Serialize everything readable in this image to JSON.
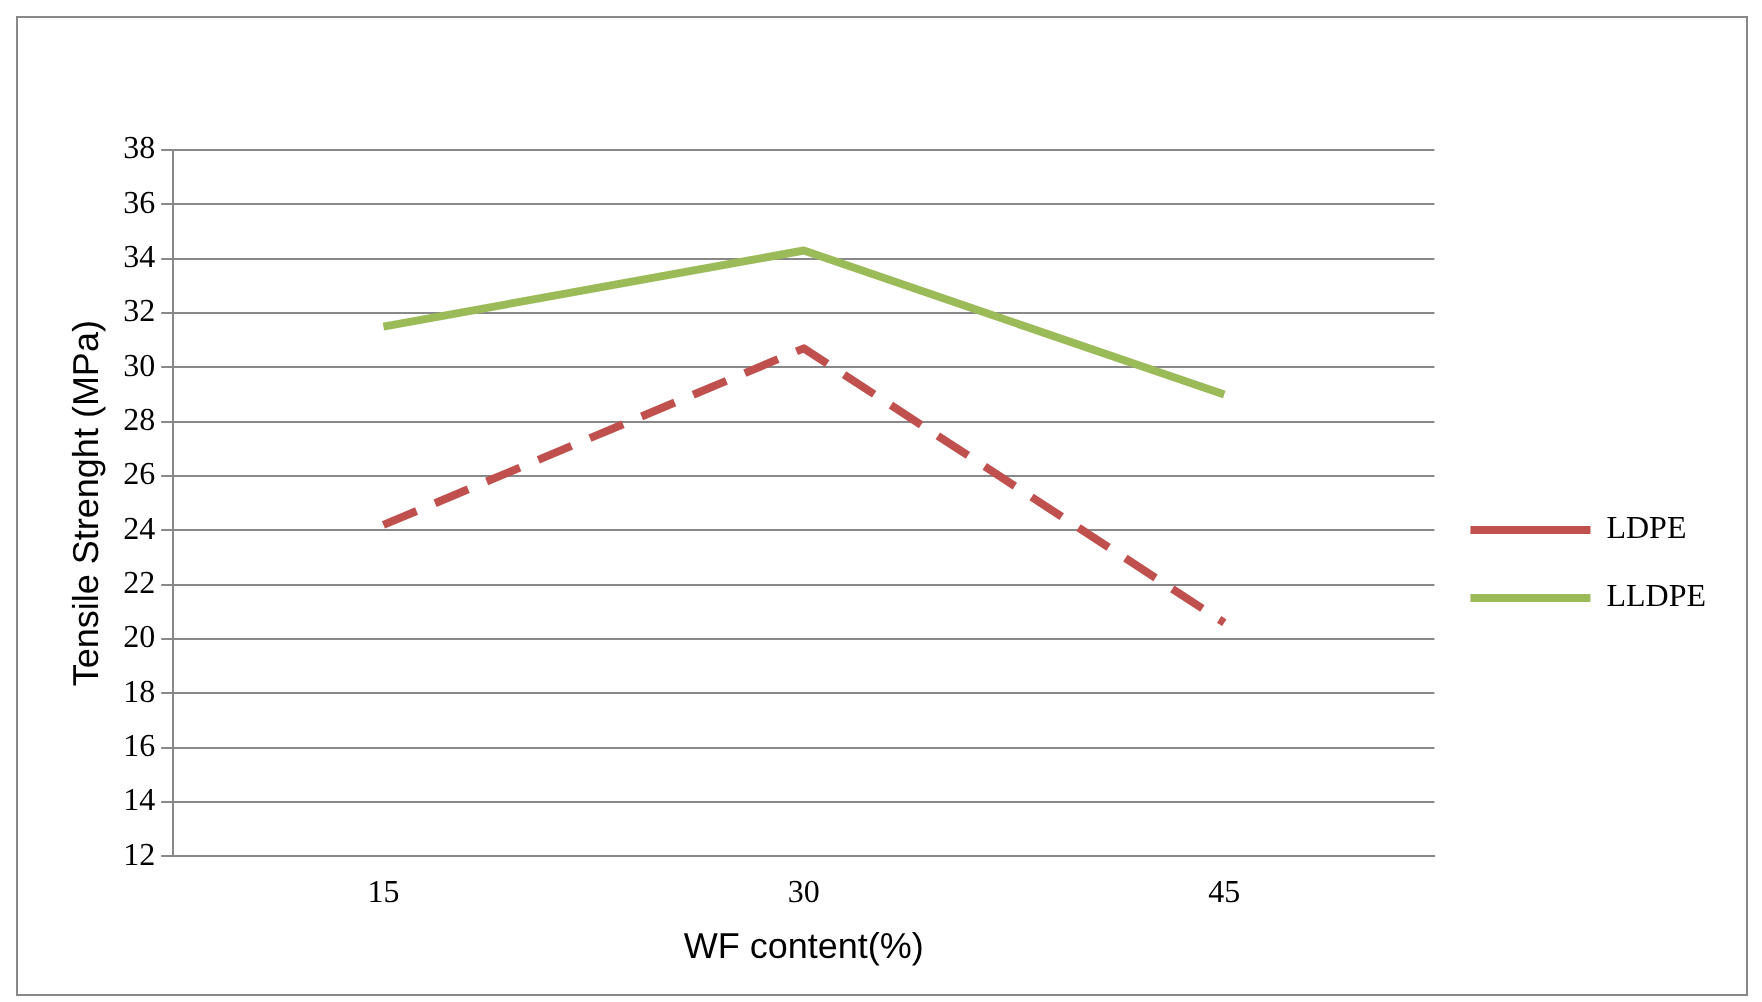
{
  "chart_data": {
    "type": "line",
    "xlabel": "WF content(%)",
    "ylabel": "Tensile Strenght (MPa)",
    "categories": [
      "15",
      "30",
      "45"
    ],
    "series": [
      {
        "name": "LDPE",
        "color": "#c0504d",
        "values": [
          24.2,
          30.7,
          20.6
        ],
        "line_style": "dashed"
      },
      {
        "name": "LLDPE",
        "color": "#9bbb59",
        "values": [
          31.5,
          34.3,
          29.0
        ],
        "line_style": "solid"
      }
    ],
    "ylim": [
      12,
      38
    ],
    "yticks": [
      12,
      14,
      16,
      18,
      20,
      22,
      24,
      26,
      28,
      30,
      32,
      34,
      36,
      38
    ],
    "grid": "y",
    "legend": "right",
    "marker": "none"
  }
}
